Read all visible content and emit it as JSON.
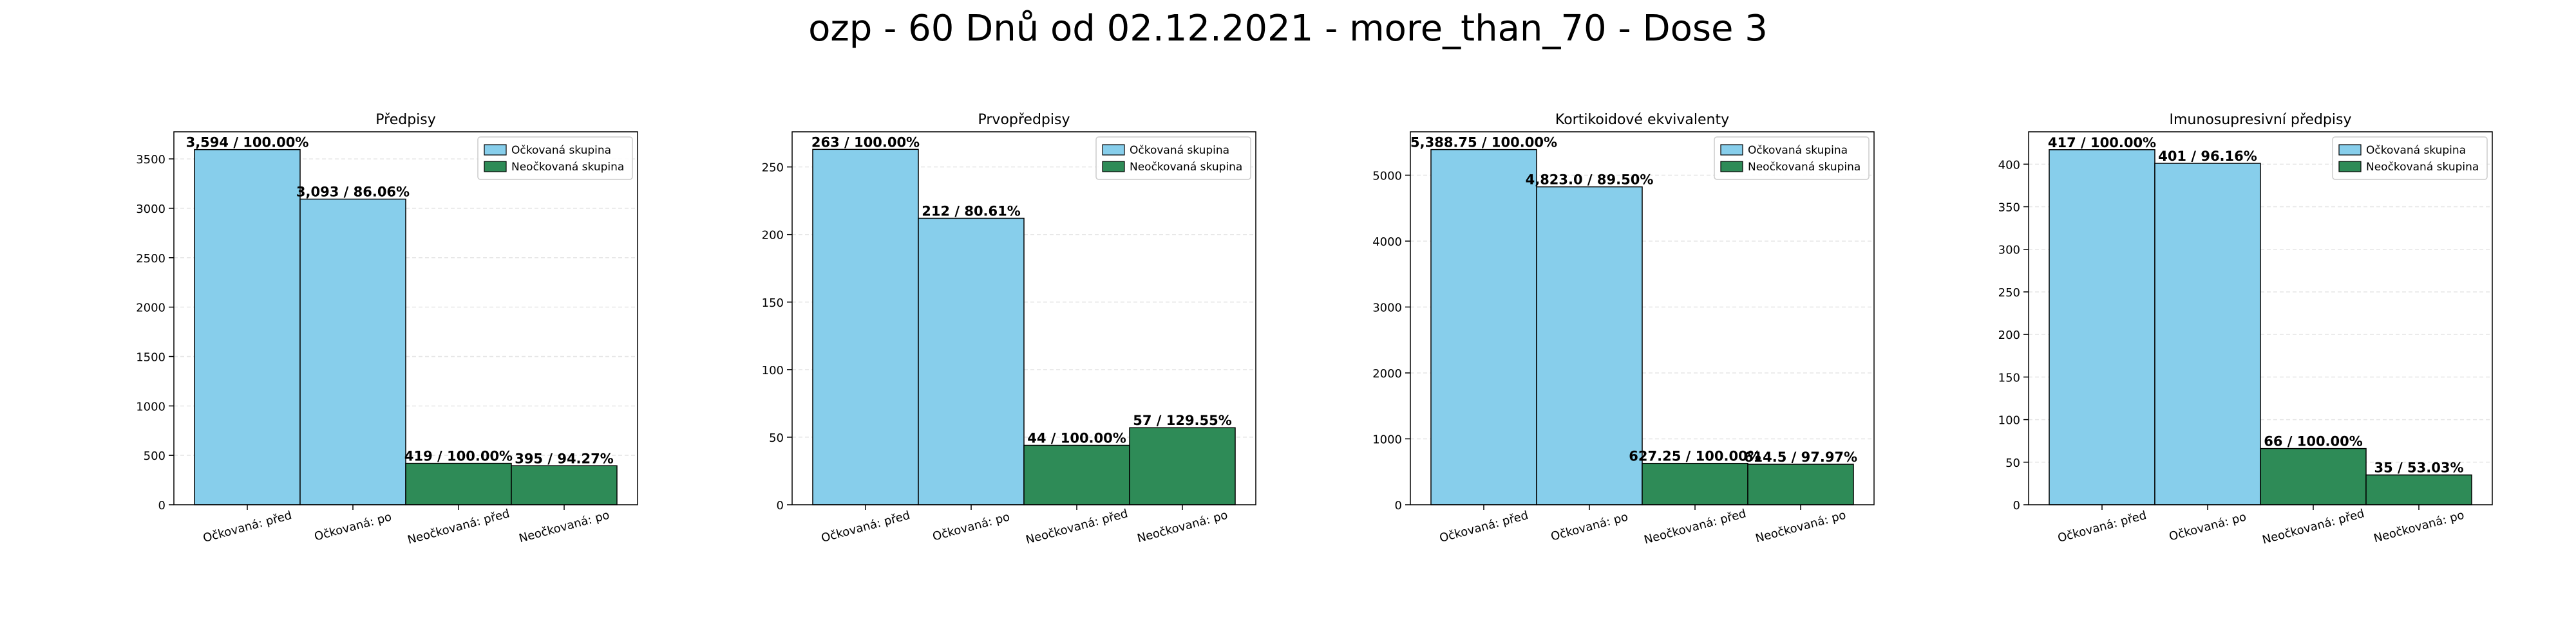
{
  "title": "ozp - 60 Dnů od 02.12.2021 - more_than_70 - Dose 3",
  "colors": {
    "vaccinated": "#87CEEB",
    "unvaccinated": "#2E8B57"
  },
  "chart_data": [
    {
      "type": "bar",
      "title": "Předpisy",
      "categories": [
        "Očkovaná: před",
        "Očkovaná: po",
        "Neočkovaná: před",
        "Neočkovaná: po"
      ],
      "values": [
        3594,
        3093,
        419,
        395
      ],
      "value_labels": [
        "3,594 / 100.00%",
        "3,093 / 86.06%",
        "419 / 100.00%",
        "395 / 94.27%"
      ],
      "bar_groups": [
        "vaccinated",
        "vaccinated",
        "unvaccinated",
        "unvaccinated"
      ],
      "legend": [
        "Očkovaná skupina",
        "Neočkovaná skupina"
      ],
      "legend_position": "top-right",
      "ylim": [
        0,
        3774
      ],
      "yticks": [
        0,
        500,
        1000,
        1500,
        2000,
        2500,
        3000,
        3500
      ],
      "grid": "y"
    },
    {
      "type": "bar",
      "title": "Prvopředpisy",
      "categories": [
        "Očkovaná: před",
        "Očkovaná: po",
        "Neočkovaná: před",
        "Neočkovaná: po"
      ],
      "values": [
        263,
        212,
        44,
        57
      ],
      "value_labels": [
        "263 / 100.00%",
        "212 / 80.61%",
        "44 / 100.00%",
        "57 / 129.55%"
      ],
      "bar_groups": [
        "vaccinated",
        "vaccinated",
        "unvaccinated",
        "unvaccinated"
      ],
      "legend": [
        "Očkovaná skupina",
        "Neočkovaná skupina"
      ],
      "legend_position": "top-right",
      "ylim": [
        0,
        276
      ],
      "yticks": [
        0,
        50,
        100,
        150,
        200,
        250
      ],
      "grid": "y"
    },
    {
      "type": "bar",
      "title": "Kortikoidové ekvivalenty",
      "categories": [
        "Očkovaná: před",
        "Očkovaná: po",
        "Neočkovaná: před",
        "Neočkovaná: po"
      ],
      "values": [
        5388.75,
        4823.0,
        627.25,
        614.5
      ],
      "value_labels": [
        "5,388.75 / 100.00%",
        "4,823.0 / 89.50%",
        "627.25 / 100.00%",
        "614.5 / 97.97%"
      ],
      "bar_groups": [
        "vaccinated",
        "vaccinated",
        "unvaccinated",
        "unvaccinated"
      ],
      "legend": [
        "Očkovaná skupina",
        "Neočkovaná skupina"
      ],
      "legend_position": "top-right",
      "ylim": [
        0,
        5658
      ],
      "yticks": [
        0,
        1000,
        2000,
        3000,
        4000,
        5000
      ],
      "grid": "y"
    },
    {
      "type": "bar",
      "title": "Imunosupresivní předpisy",
      "categories": [
        "Očkovaná: před",
        "Očkovaná: po",
        "Neočkovaná: před",
        "Neočkovaná: po"
      ],
      "values": [
        417,
        401,
        66,
        35
      ],
      "value_labels": [
        "417 / 100.00%",
        "401 / 96.16%",
        "66 / 100.00%",
        "35 / 53.03%"
      ],
      "bar_groups": [
        "vaccinated",
        "vaccinated",
        "unvaccinated",
        "unvaccinated"
      ],
      "legend": [
        "Očkovaná skupina",
        "Neočkovaná skupina"
      ],
      "legend_position": "top-right",
      "ylim": [
        0,
        438
      ],
      "yticks": [
        0,
        50,
        100,
        150,
        200,
        250,
        300,
        350,
        400
      ],
      "grid": "y"
    }
  ]
}
